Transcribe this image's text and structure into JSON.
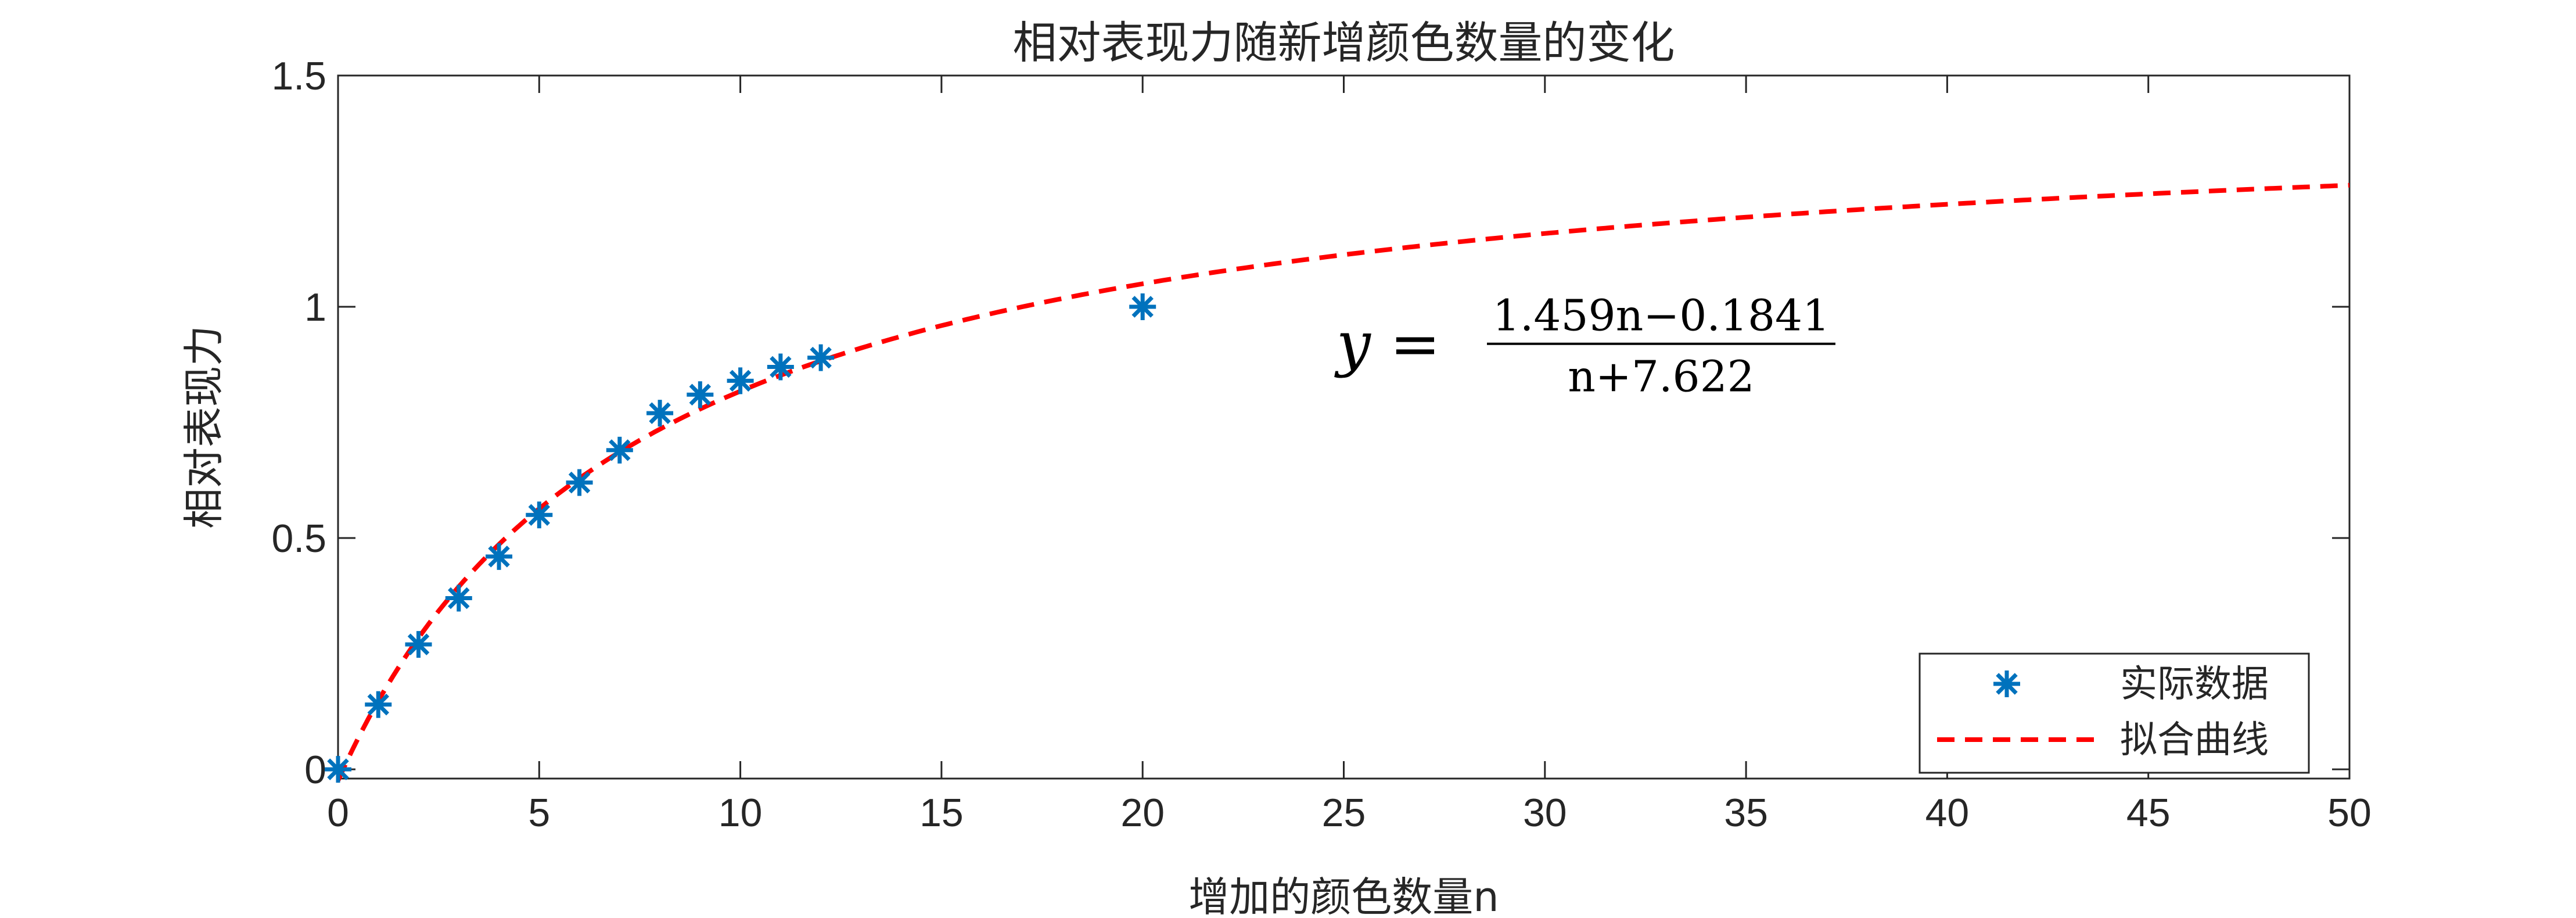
{
  "chart_data": {
    "type": "scatter",
    "title": "相对表现力随新增颜色数量的变化",
    "xlabel": "增加的颜色数量n",
    "ylabel": "相对表现力",
    "xlim": [
      0,
      50
    ],
    "ylim": [
      -0.02,
      1.5
    ],
    "x_ticks": [
      0,
      5,
      10,
      15,
      20,
      25,
      30,
      35,
      40,
      45,
      50
    ],
    "y_ticks": [
      0,
      0.5,
      1,
      1.5
    ],
    "x_tick_labels": [
      "0",
      "5",
      "10",
      "15",
      "20",
      "25",
      "30",
      "35",
      "40",
      "45",
      "50"
    ],
    "y_tick_labels": [
      "0",
      "0.5",
      "1",
      "1.5"
    ],
    "grid": false,
    "legend_position": "bottom-right",
    "series": [
      {
        "name": "实际数据",
        "type": "scatter",
        "marker": "asterisk",
        "color": "#0072BD",
        "x": [
          0,
          1,
          2,
          3,
          4,
          5,
          6,
          7,
          8,
          9,
          10,
          11,
          12,
          20
        ],
        "y": [
          0,
          0.14,
          0.27,
          0.37,
          0.46,
          0.55,
          0.62,
          0.69,
          0.77,
          0.81,
          0.84,
          0.87,
          0.89,
          1.0
        ]
      },
      {
        "name": "拟合曲线",
        "type": "line",
        "line_style": "dashed",
        "color": "#FF0000",
        "formula": {
          "a": 1.459,
          "b": -0.1841,
          "c": 7.622
        },
        "x_range": [
          0,
          50
        ]
      }
    ],
    "annotation": {
      "lhs": "y =",
      "numerator": "1.459n−0.1841",
      "denominator": "n+7.622"
    }
  }
}
